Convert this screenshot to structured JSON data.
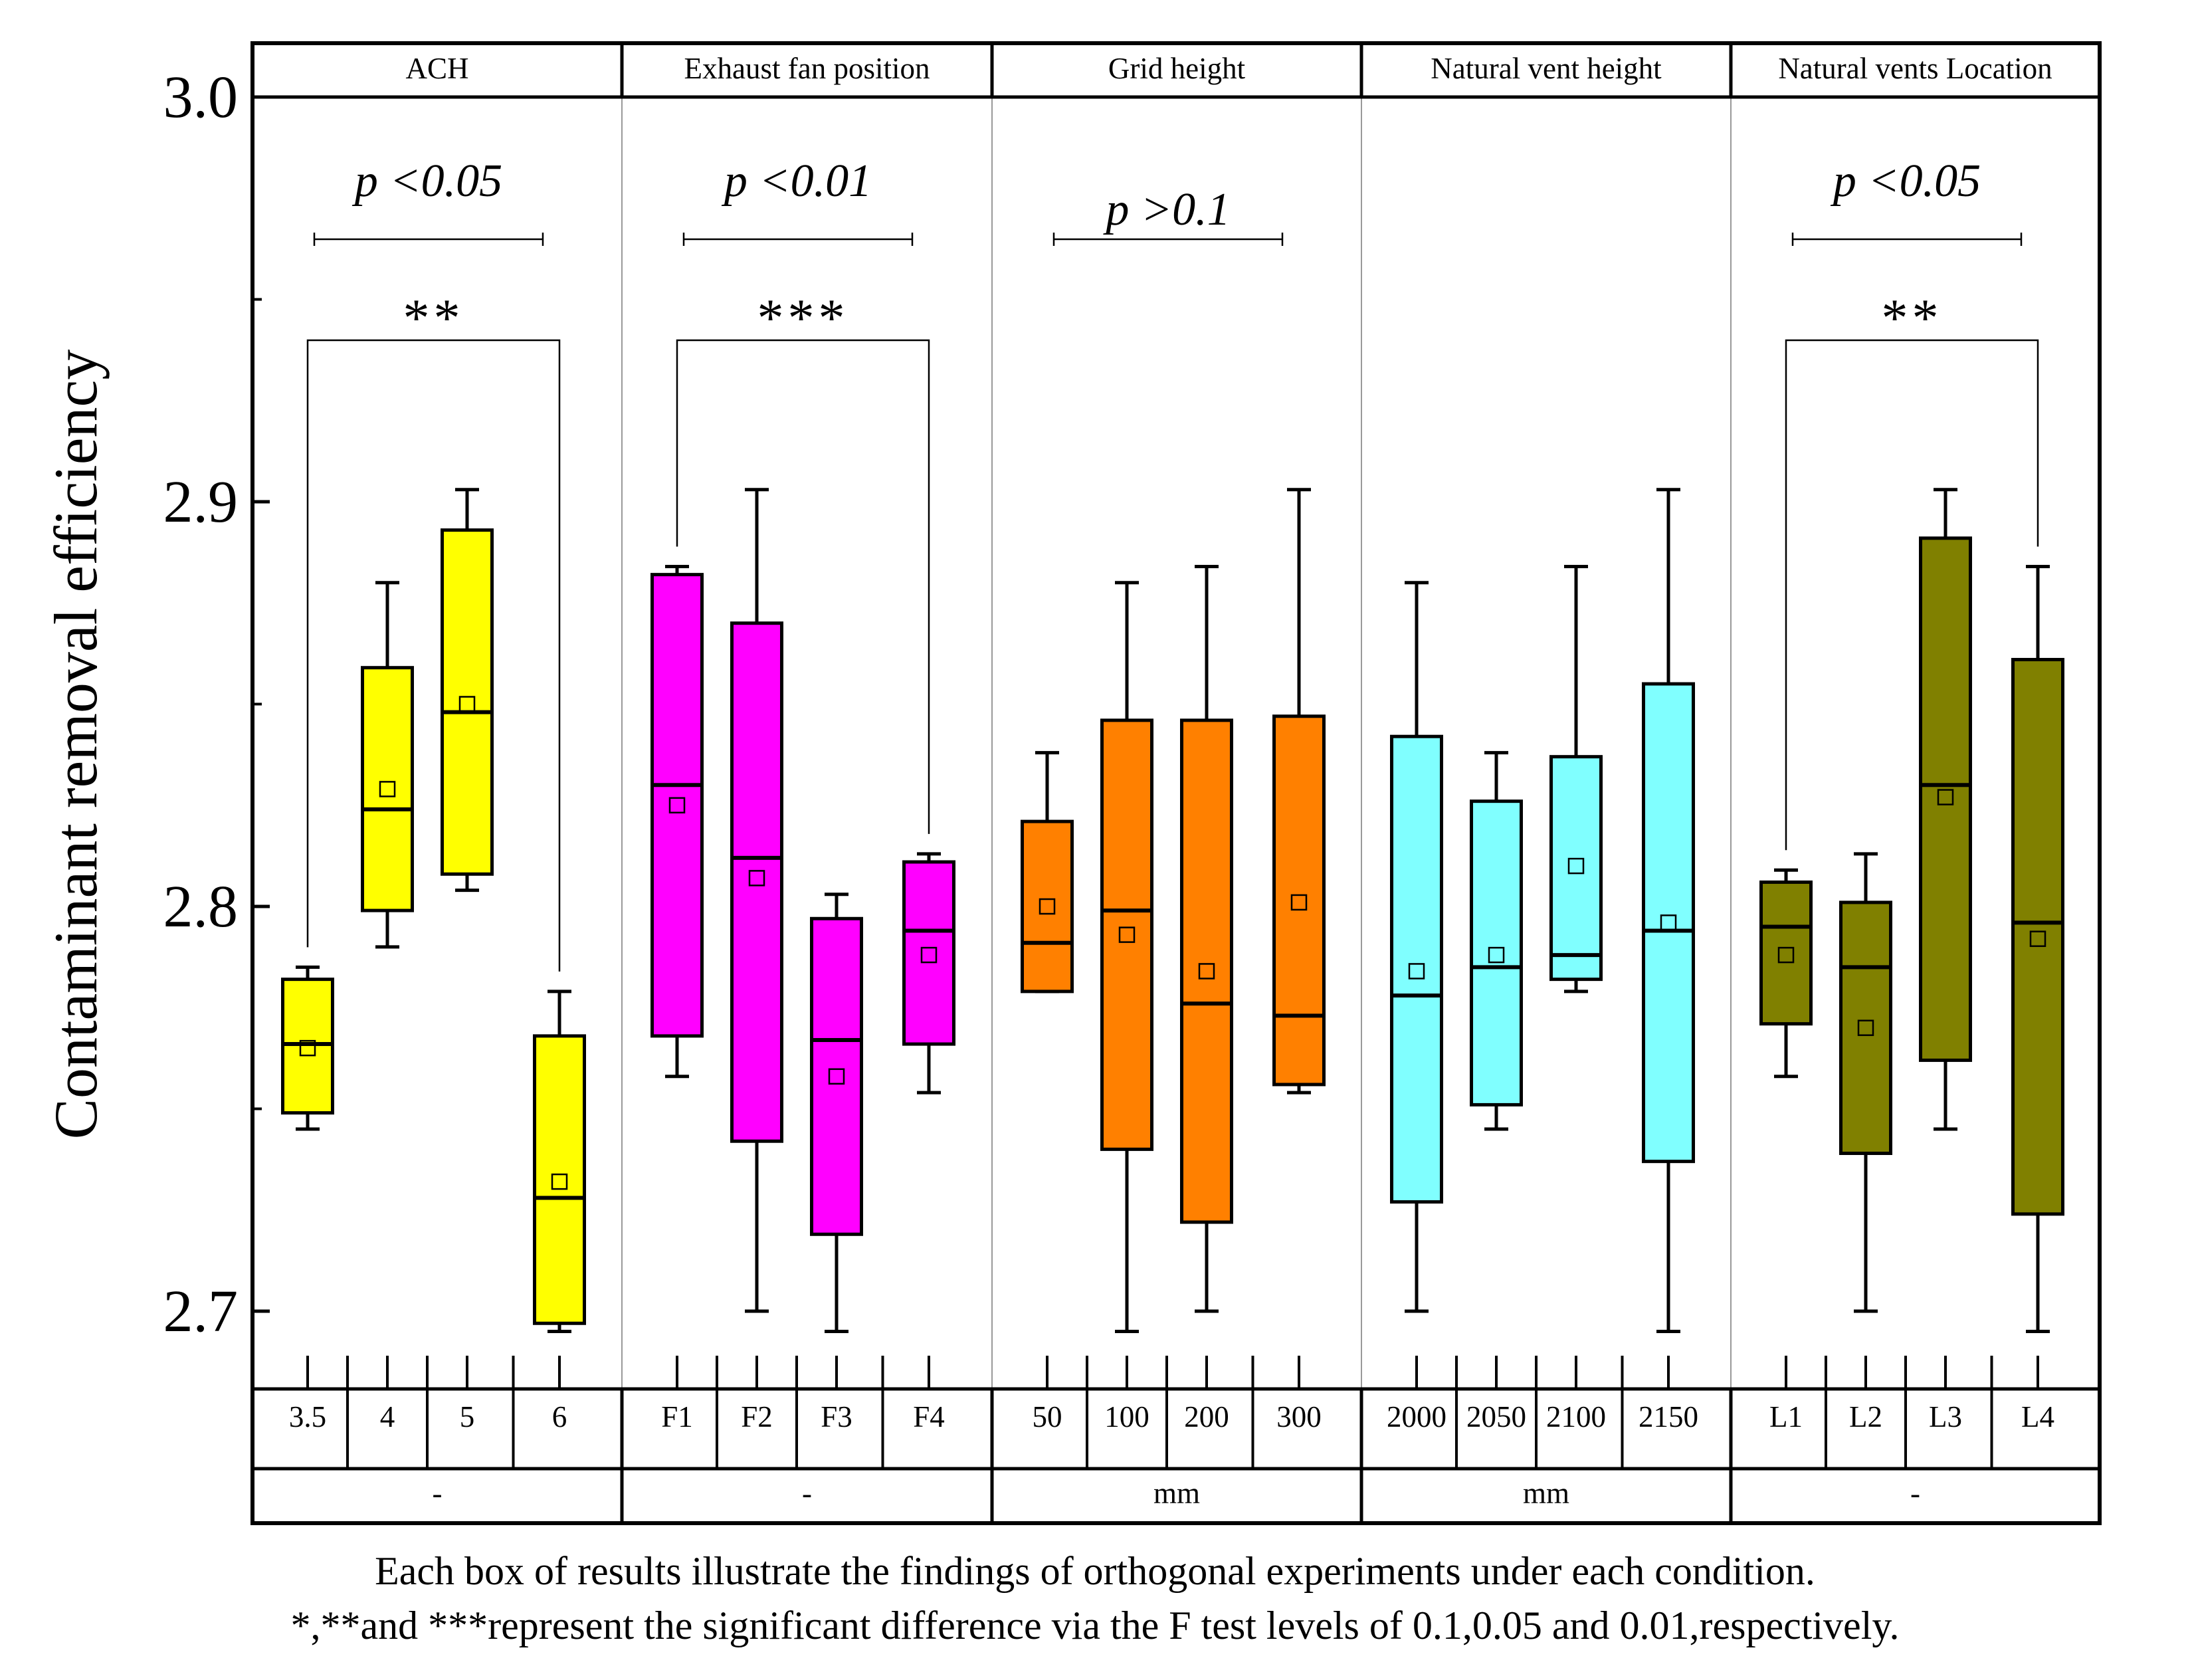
{
  "chart_data": {
    "type": "box",
    "ylabel": "Contaminant removal efficiency",
    "ylim": [
      2.68,
      3.0
    ],
    "yticks": [
      "2.7",
      "2.8",
      "2.9",
      "3.0"
    ],
    "groups": [
      {
        "title": "ACH",
        "unit": "-",
        "color": "#ffff00",
        "pvalue": "p <0.05",
        "stars": "**",
        "bracket": [
          0,
          3
        ],
        "boxes": [
          {
            "label": "3.5",
            "min": 2.745,
            "q1": 2.749,
            "median": 2.766,
            "q3": 2.782,
            "max": 2.785,
            "mean": 2.765
          },
          {
            "label": "4",
            "min": 2.79,
            "q1": 2.799,
            "median": 2.824,
            "q3": 2.859,
            "max": 2.88,
            "mean": 2.829
          },
          {
            "label": "5",
            "min": 2.804,
            "q1": 2.808,
            "median": 2.848,
            "q3": 2.893,
            "max": 2.903,
            "mean": 2.85
          },
          {
            "label": "6",
            "min": 2.695,
            "q1": 2.697,
            "median": 2.728,
            "q3": 2.768,
            "max": 2.779,
            "mean": 2.732
          }
        ]
      },
      {
        "title": "Exhaust fan position",
        "unit": "-",
        "color": "#ff00ff",
        "pvalue": "p <0.01",
        "stars": "***",
        "bracket": [
          0,
          3
        ],
        "boxes": [
          {
            "label": "F1",
            "min": 2.758,
            "q1": 2.768,
            "median": 2.83,
            "q3": 2.882,
            "max": 2.884,
            "mean": 2.825
          },
          {
            "label": "F2",
            "min": 2.7,
            "q1": 2.742,
            "median": 2.812,
            "q3": 2.87,
            "max": 2.903,
            "mean": 2.807
          },
          {
            "label": "F3",
            "min": 2.695,
            "q1": 2.719,
            "median": 2.767,
            "q3": 2.797,
            "max": 2.803,
            "mean": 2.758
          },
          {
            "label": "F4",
            "min": 2.754,
            "q1": 2.766,
            "median": 2.794,
            "q3": 2.811,
            "max": 2.813,
            "mean": 2.788
          }
        ]
      },
      {
        "title": "Grid height",
        "unit": "mm",
        "color": "#ff8000",
        "pvalue": "p >0.1",
        "stars": "",
        "bracket": null,
        "boxes": [
          {
            "label": "50",
            "min": 2.779,
            "q1": 2.779,
            "median": 2.791,
            "q3": 2.821,
            "max": 2.838,
            "mean": 2.8
          },
          {
            "label": "100",
            "min": 2.695,
            "q1": 2.74,
            "median": 2.799,
            "q3": 2.846,
            "max": 2.88,
            "mean": 2.793
          },
          {
            "label": "200",
            "min": 2.7,
            "q1": 2.722,
            "median": 2.776,
            "q3": 2.846,
            "max": 2.884,
            "mean": 2.784
          },
          {
            "label": "300",
            "min": 2.754,
            "q1": 2.756,
            "median": 2.773,
            "q3": 2.847,
            "max": 2.903,
            "mean": 2.801
          }
        ]
      },
      {
        "title": "Natural vent height",
        "unit": "mm",
        "color": "#80ffff",
        "pvalue": "",
        "stars": "",
        "bracket": null,
        "boxes": [
          {
            "label": "2000",
            "min": 2.7,
            "q1": 2.727,
            "median": 2.778,
            "q3": 2.842,
            "max": 2.88,
            "mean": 2.784
          },
          {
            "label": "2050",
            "min": 2.745,
            "q1": 2.751,
            "median": 2.785,
            "q3": 2.826,
            "max": 2.838,
            "mean": 2.788
          },
          {
            "label": "2100",
            "min": 2.779,
            "q1": 2.782,
            "median": 2.788,
            "q3": 2.837,
            "max": 2.884,
            "mean": 2.81
          },
          {
            "label": "2150",
            "min": 2.695,
            "q1": 2.737,
            "median": 2.794,
            "q3": 2.855,
            "max": 2.903,
            "mean": 2.796
          }
        ]
      },
      {
        "title": "Natural vents Location",
        "unit": "-",
        "color": "#808000",
        "pvalue": "p <0.05",
        "stars": "**",
        "bracket": [
          0,
          3
        ],
        "boxes": [
          {
            "label": "L1",
            "min": 2.758,
            "q1": 2.771,
            "median": 2.795,
            "q3": 2.806,
            "max": 2.809,
            "mean": 2.788
          },
          {
            "label": "L2",
            "min": 2.7,
            "q1": 2.739,
            "median": 2.785,
            "q3": 2.801,
            "max": 2.813,
            "mean": 2.77
          },
          {
            "label": "L3",
            "min": 2.745,
            "q1": 2.762,
            "median": 2.83,
            "q3": 2.891,
            "max": 2.903,
            "mean": 2.827
          },
          {
            "label": "L4",
            "min": 2.695,
            "q1": 2.724,
            "median": 2.796,
            "q3": 2.861,
            "max": 2.884,
            "mean": 2.792
          }
        ]
      }
    ]
  },
  "caption": {
    "line1": "Each box of results illustrate the findings of orthogonal experiments under each condition.",
    "line2": "*,**and ***represent the significant difference via the F test levels of 0.1,0.05 and 0.01,respectively."
  }
}
